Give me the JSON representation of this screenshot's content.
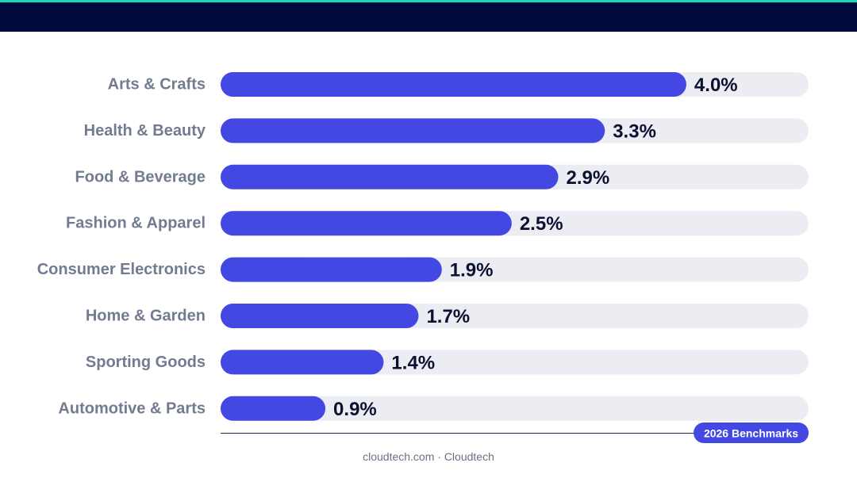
{
  "colors": {
    "accent_bar": "#19d9b4",
    "header_band": "#000a3d",
    "bar_fill": "#4348e3",
    "track": "#ececf3",
    "category_text": "#727b90",
    "value_text": "#0b1130",
    "axis_line": "#1b2250",
    "badge_bg": "#4348e3"
  },
  "badge": {
    "label": "2026 Benchmarks"
  },
  "footer": {
    "text": "cloudtech.com · Cloudtech"
  },
  "chart_data": {
    "type": "bar",
    "orientation": "horizontal",
    "categories": [
      "Arts & Crafts",
      "Health & Beauty",
      "Food & Beverage",
      "Fashion & Apparel",
      "Consumer Electronics",
      "Home & Garden",
      "Sporting Goods",
      "Automotive & Parts"
    ],
    "values": [
      4.0,
      3.3,
      2.9,
      2.5,
      1.9,
      1.7,
      1.4,
      0.9
    ],
    "value_labels": [
      "4.0%",
      "3.3%",
      "2.9%",
      "2.5%",
      "1.9%",
      "1.7%",
      "1.4%",
      "0.9%"
    ],
    "xlim": [
      0,
      5.05
    ],
    "grid": false,
    "legend": "none"
  }
}
